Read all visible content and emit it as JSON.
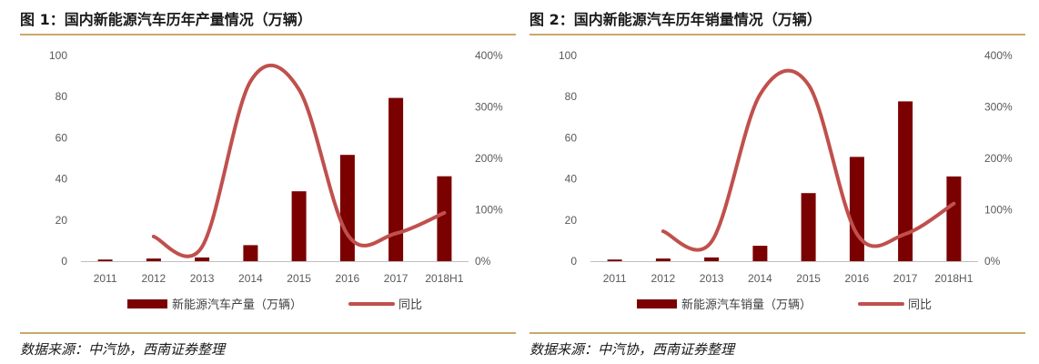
{
  "colors": {
    "bar": "#7b0000",
    "line": "#c0504d",
    "rule": "#c9a86a"
  },
  "figures": [
    {
      "title": "图 1：国内新能源汽车历年产量情况（万辆）",
      "source": "数据来源：中汽协，西南证券整理",
      "legend": {
        "bar": "新能源汽车产量（万辆）",
        "line": "同比"
      }
    },
    {
      "title": "图 2：国内新能源汽车历年销量情况（万辆）",
      "source": "数据来源：中汽协，西南证券整理",
      "legend": {
        "bar": "新能源汽车销量（万辆）",
        "line": "同比"
      }
    }
  ],
  "chart_data": [
    {
      "type": "bar",
      "title": "图 1：国内新能源汽车历年产量情况（万辆）",
      "categories": [
        "2011",
        "2012",
        "2013",
        "2014",
        "2015",
        "2016",
        "2017",
        "2018H1"
      ],
      "series": [
        {
          "name": "新能源汽车产量（万辆）",
          "type": "bar",
          "axis": "left",
          "values": [
            0.8,
            1.3,
            1.8,
            7.8,
            34.0,
            51.7,
            79.4,
            41.3
          ]
        },
        {
          "name": "同比",
          "type": "line",
          "axis": "right",
          "unit": "%",
          "values": [
            null,
            48,
            28,
            350,
            334,
            52,
            54,
            94
          ]
        }
      ],
      "ylim": [
        0,
        100
      ],
      "yticks": [
        0,
        20,
        40,
        60,
        80,
        100
      ],
      "y2lim": [
        0,
        400
      ],
      "y2ticks": [
        "0%",
        "100%",
        "200%",
        "300%",
        "400%"
      ],
      "grid": false,
      "legend_position": "bottom"
    },
    {
      "type": "bar",
      "title": "图 2：国内新能源汽车历年销量情况（万辆）",
      "categories": [
        "2011",
        "2012",
        "2013",
        "2014",
        "2015",
        "2016",
        "2017",
        "2018H1"
      ],
      "series": [
        {
          "name": "新能源汽车销量（万辆）",
          "type": "bar",
          "axis": "left",
          "values": [
            0.8,
            1.3,
            1.8,
            7.5,
            33.1,
            50.7,
            77.7,
            41.2
          ]
        },
        {
          "name": "同比",
          "type": "line",
          "axis": "right",
          "unit": "%",
          "values": [
            null,
            58,
            38,
            324,
            343,
            53,
            53,
            112
          ]
        }
      ],
      "ylim": [
        0,
        100
      ],
      "yticks": [
        0,
        20,
        40,
        60,
        80,
        100
      ],
      "y2lim": [
        0,
        400
      ],
      "y2ticks": [
        "0%",
        "100%",
        "200%",
        "300%",
        "400%"
      ],
      "grid": false,
      "legend_position": "bottom"
    }
  ]
}
